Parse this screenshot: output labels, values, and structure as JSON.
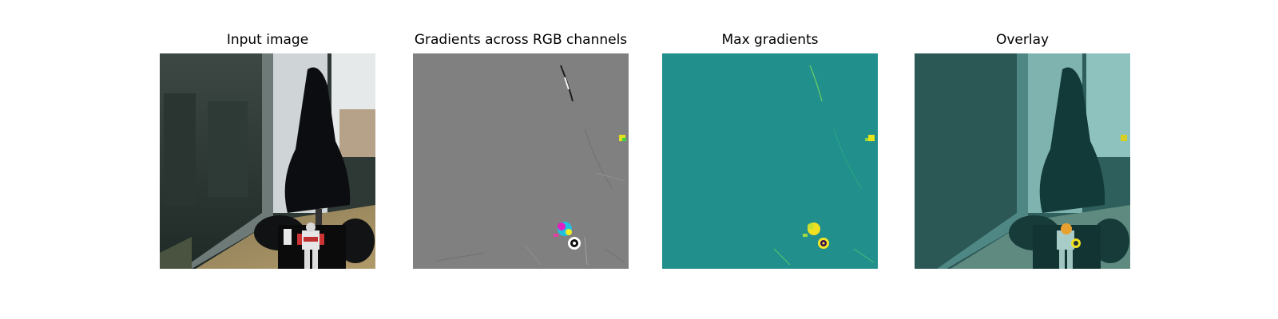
{
  "figure": {
    "panels": [
      {
        "title": "Input image"
      },
      {
        "title": "Gradients across RGB channels"
      },
      {
        "title": "Max gradients"
      },
      {
        "title": "Overlay"
      }
    ]
  },
  "colors": {
    "gradient_bg": "#808080",
    "max_grad_bg": "#218f8c",
    "overlay_tint": "#3a9a96",
    "highlight_yellow": "#f0e020",
    "highlight_magenta": "#e020c0",
    "highlight_cyan": "#20d0e0"
  }
}
